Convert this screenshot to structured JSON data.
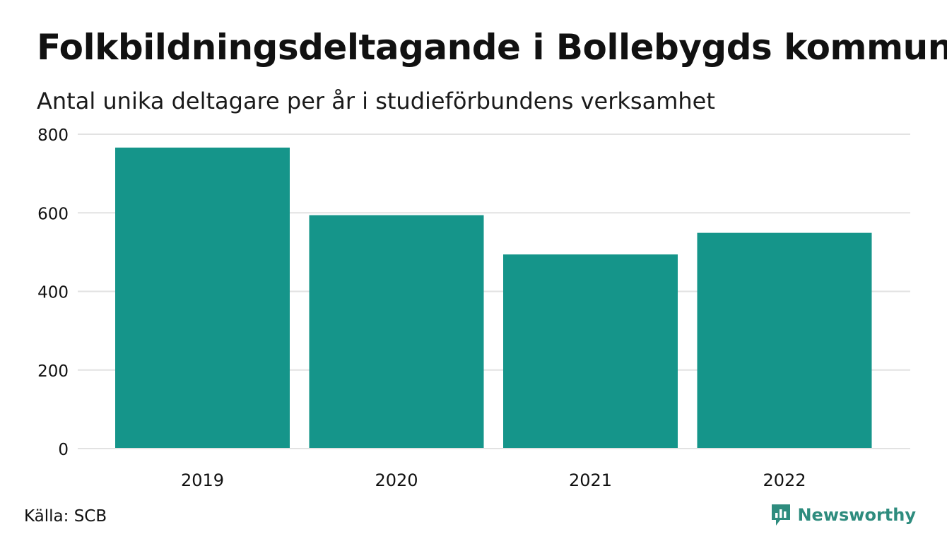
{
  "header": {
    "title": "Folkbildningsdeltagande i Bollebygds kommun",
    "subtitle": "Antal unika deltagare per år i studieförbundens verksamhet"
  },
  "footer": {
    "source": "Källa: SCB",
    "brand": "Newsworthy",
    "brand_color": "#2e8c7e"
  },
  "chart_data": {
    "type": "bar",
    "categories": [
      "2019",
      "2020",
      "2021",
      "2022"
    ],
    "values": [
      766,
      594,
      494,
      549
    ],
    "ylim": [
      0,
      800
    ],
    "yticks": [
      0,
      200,
      400,
      600,
      800
    ],
    "grid": true,
    "bar_color": "#15958a",
    "grid_color": "#e2e2e2"
  }
}
